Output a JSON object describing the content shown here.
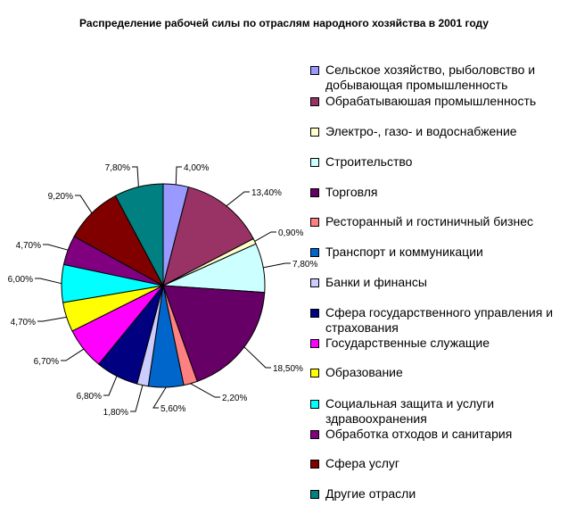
{
  "chart_data": {
    "type": "pie",
    "title": "Распределение рабочей силы по отраслям народного хозяйства в 2001 году",
    "categories": [
      "Сельское хозяйство, рыболовство и добывающая промышленность",
      "Обрабатываюшая промышленность",
      "Электро-, газо- и водоснабжение",
      "Строительство",
      "Торговля",
      "Ресторанный и гостиничный бизнес",
      "Транспорт и коммуникации",
      "Банки и финансы",
      "Сфера государственного управления и страхования",
      "Государственные служащие",
      "Образование",
      "Социальная защита и услуги здравоохранения",
      "Обработка отходов и санитария",
      "Сфера услуг",
      "Другие отрасли"
    ],
    "values": [
      4.0,
      13.4,
      0.9,
      7.8,
      18.5,
      2.2,
      5.6,
      1.8,
      6.8,
      6.7,
      4.7,
      6.0,
      4.7,
      9.2,
      7.8
    ],
    "value_labels": [
      "4,00%",
      "13,40%",
      "0,90%",
      "7,80%",
      "18,50%",
      "2,20%",
      "5,60%",
      "1,80%",
      "6,80%",
      "6,70%",
      "4,70%",
      "6,00%",
      "4,70%",
      "9,20%",
      "7,80%"
    ],
    "colors": [
      "#9999FF",
      "#993366",
      "#FFFFCC",
      "#CCFFFF",
      "#660066",
      "#FF8080",
      "#0066CC",
      "#CCCCFF",
      "#000080",
      "#FF00FF",
      "#FFFF00",
      "#00FFFF",
      "#800080",
      "#800000",
      "#008080"
    ],
    "legend_position": "right",
    "start_angle_deg": 0,
    "direction": "clockwise"
  }
}
